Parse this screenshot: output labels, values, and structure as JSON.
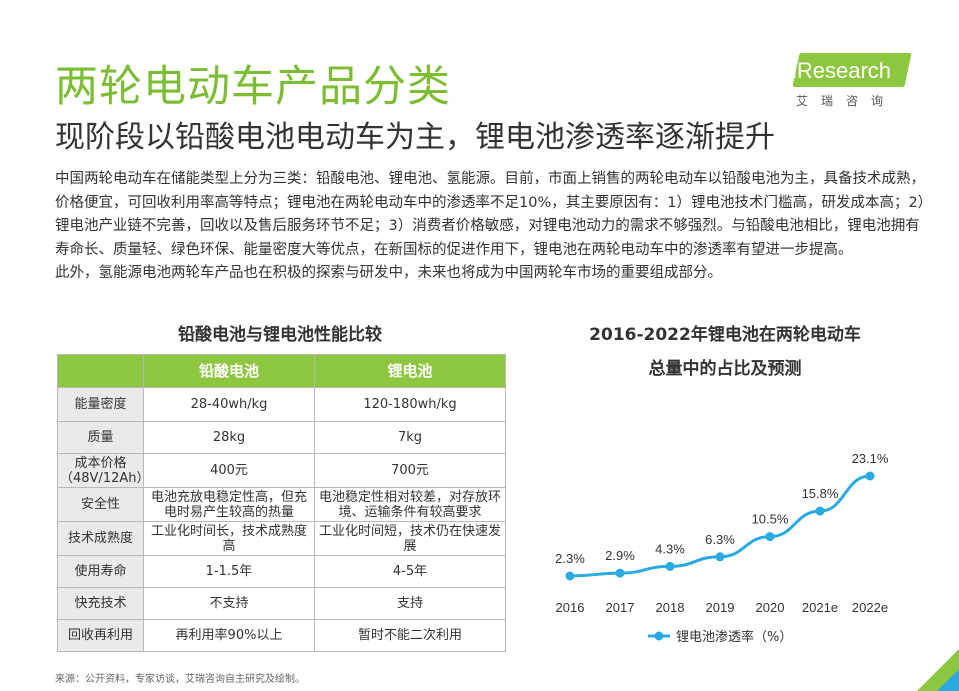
{
  "header": {
    "title": "两轮电动车产品分类",
    "subtitle": "现阶段以铅酸电池电动车为主，锂电池渗透率逐渐提升"
  },
  "logo": {
    "text": "iResearch",
    "cn": "艾瑞咨询"
  },
  "body": {
    "paragraph1": "中国两轮电动车在储能类型上分为三类：铅酸电池、锂电池、氢能源。目前，市面上销售的两轮电动车以铅酸电池为主，具备技术成熟，价格便宜，可回收利用率高等特点；锂电池在两轮电动车中的渗透率不足10%，其主要原因有：1）锂电池技术门槛高，研发成本高；2）锂电池产业链不完善，回收以及售后服务环节不足；3）消费者价格敏感，对锂电池动力的需求不够强烈。与铅酸电池相比，锂电池拥有寿命长、质量轻、绿色环保、能量密度大等优点，在新国标的促进作用下，锂电池在两轮电动车中的渗透率有望进一步提高。",
    "paragraph2": "此外，氢能源电池两轮车产品也在积极的探索与研发中，未来也将成为中国两轮车市场的重要组成部分。"
  },
  "table": {
    "title": "铅酸电池与锂电池性能比较",
    "headers": [
      "",
      "铅酸电池",
      "锂电池"
    ],
    "rows": [
      {
        "label": "能量密度",
        "lead": "28-40wh/kg",
        "lithium": "120-180wh/kg"
      },
      {
        "label": "质量",
        "lead": "28kg",
        "lithium": "7kg"
      },
      {
        "label": "成本价格（48V/12Ah）",
        "lead": "400元",
        "lithium": "700元"
      },
      {
        "label": "安全性",
        "lead": "电池充放电稳定性高，但充电时易产生较高的热量",
        "lithium": "电池稳定性相对较差，对存放环境、运输条件有较高要求"
      },
      {
        "label": "技术成熟度",
        "lead": "工业化时间长，技术成熟度高",
        "lithium": "工业化时间短，技术仍在快速发展"
      },
      {
        "label": "使用寿命",
        "lead": "1-1.5年",
        "lithium": "4-5年"
      },
      {
        "label": "快充技术",
        "lead": "不支持",
        "lithium": "支持"
      },
      {
        "label": "回收再利用",
        "lead": "再利用率90%以上",
        "lithium": "暂时不能二次利用"
      }
    ]
  },
  "chart_data": {
    "type": "line",
    "title_line1": "2016-2022年锂电池在两轮电动车",
    "title_line2": "总量中的占比及预测",
    "categories": [
      "2016",
      "2017",
      "2018",
      "2019",
      "2020",
      "2021e",
      "2022e"
    ],
    "series": [
      {
        "name": "锂电池渗透率（%）",
        "values": [
          2.3,
          2.9,
          4.3,
          6.3,
          10.5,
          15.8,
          23.1
        ]
      }
    ],
    "data_labels": [
      "2.3%",
      "2.9%",
      "4.3%",
      "6.3%",
      "10.5%",
      "15.8%",
      "23.1%"
    ],
    "legend_position": "bottom",
    "grid": false,
    "color": "#29abe2"
  },
  "footer": {
    "source": "来源：公开资料，专家访谈，艾瑞咨询自主研究及绘制。"
  },
  "colors": {
    "accent_green": "#7cbd33",
    "header_green": "#8dc63f",
    "line_blue": "#29abe2"
  }
}
